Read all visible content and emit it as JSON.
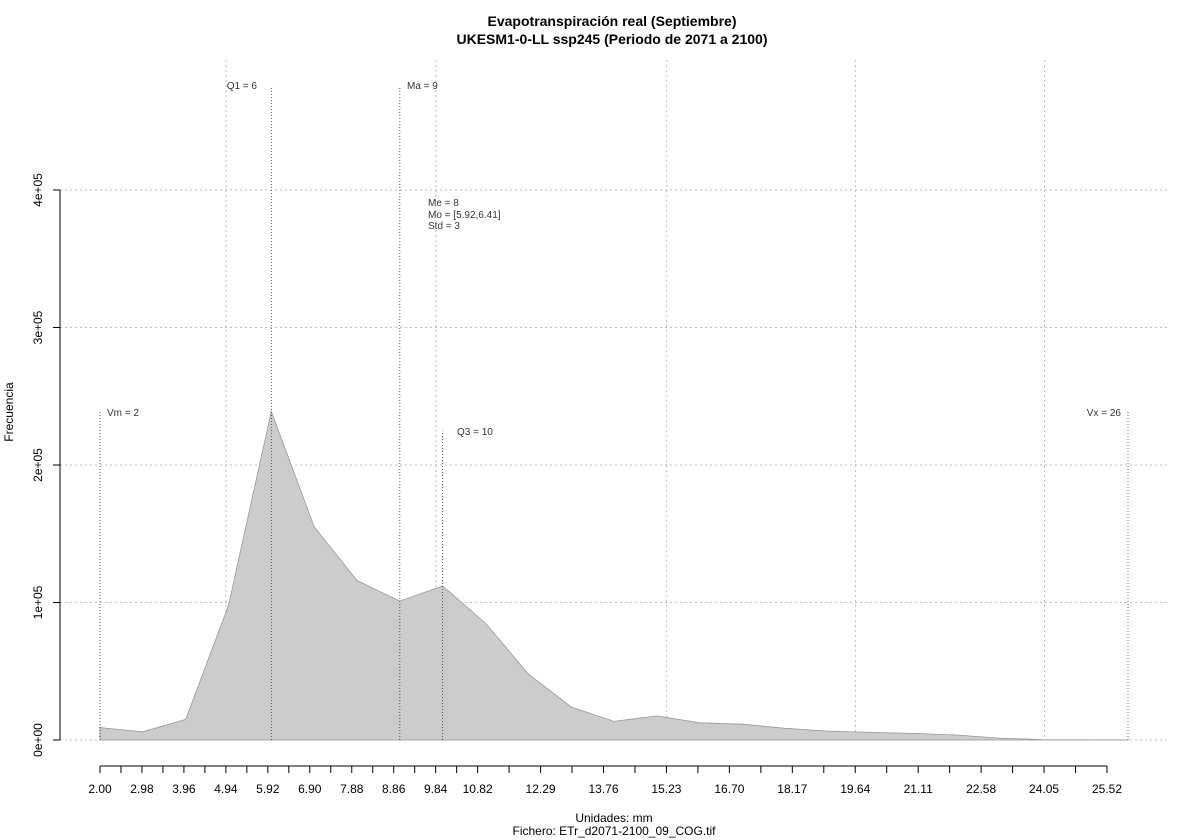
{
  "chart_data": {
    "type": "area",
    "title": "Evapotranspiración real (Septiembre)",
    "subtitle": "UKESM1-0-LL ssp245 (Periodo de 2071 a 2100)",
    "xlabel": "Unidades: mm",
    "ylabel": "Frecuencia",
    "caption": "Fichero: ETr_d2071-2100_09_COG.tif",
    "xlim": [
      2.0,
      26.0
    ],
    "ylim": [
      0,
      400000
    ],
    "x_tick_labels": [
      "2.00",
      "2.98",
      "3.96",
      "4.94",
      "5.92",
      "6.90",
      "7.88",
      "8.86",
      "9.84",
      "10.82",
      "12.29",
      "13.76",
      "15.23",
      "16.70",
      "18.17",
      "19.64",
      "21.11",
      "22.58",
      "24.05",
      "25.52"
    ],
    "x_tick_values": [
      2.0,
      2.98,
      3.96,
      4.94,
      5.92,
      6.9,
      7.88,
      8.86,
      9.84,
      10.82,
      12.29,
      13.76,
      15.23,
      16.7,
      18.17,
      19.64,
      21.11,
      22.58,
      24.05,
      25.52
    ],
    "y_tick_values": [
      0,
      100000,
      200000,
      300000,
      400000
    ],
    "y_tick_labels": [
      "0e+00",
      "1e+05",
      "2e+05",
      "3e+05",
      "4e+05"
    ],
    "grid": true,
    "fill_color": "#cccccc",
    "line_color": "#999999",
    "x": [
      2.0,
      3.0,
      4.0,
      5.0,
      6.0,
      7.0,
      8.0,
      9.0,
      10.0,
      11.0,
      12.0,
      13.0,
      14.0,
      15.0,
      16.0,
      17.0,
      18.0,
      19.0,
      20.0,
      21.0,
      22.0,
      23.0,
      24.0,
      25.0,
      26.0
    ],
    "values": [
      9000,
      6000,
      15000,
      98000,
      239000,
      155000,
      116000,
      101000,
      112000,
      85000,
      48000,
      24000,
      13500,
      17500,
      12500,
      11500,
      8500,
      6500,
      5500,
      4800,
      3600,
      1400,
      300,
      150,
      100
    ],
    "annotations": {
      "vm": {
        "label": "Vm = 2",
        "x": 2.0,
        "top": 240000
      },
      "q1": {
        "label": "Q1 = 6",
        "x": 6.0,
        "top": 475000
      },
      "ma": {
        "label": "Ma = 9",
        "x": 9.0,
        "top": 475000
      },
      "q3": {
        "label": "Q3 = 10",
        "x": 10.0,
        "top": 225000
      },
      "vx": {
        "label": "Vx = 26",
        "x": 26.0,
        "top": 240000
      },
      "stats": [
        "Me = 8",
        "Mo = [5.92,6.41]",
        "Std = 3"
      ]
    }
  }
}
